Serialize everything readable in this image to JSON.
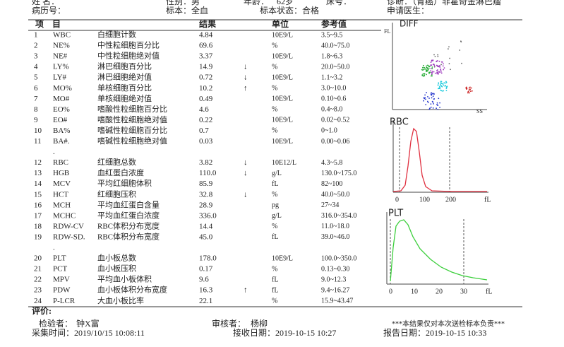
{
  "header": {
    "line1": [
      "姓",
      "名：",
      "性别：男",
      "年龄：",
      "62岁",
      "床号：",
      "诊断：（胃癌）非霍奇金淋巴瘤"
    ],
    "line2": [
      "病历号：",
      "标本：全血",
      "标本状态：合格",
      "申请医生："
    ]
  },
  "table": {
    "columns": [
      "项　目",
      "结果",
      "单位",
      "参考值"
    ],
    "rows": [
      {
        "num": "1",
        "code": "WBC",
        "name": "白细胞计数",
        "result": "4.84",
        "unit": "10E9/L",
        "ref": "3.5~9.5"
      },
      {
        "num": "2",
        "code": "NE%",
        "name": "中性粒细胞百分比",
        "result": "69.6",
        "unit": "%",
        "ref": "40.0~75.0"
      },
      {
        "num": "3",
        "code": "NE#",
        "name": "中性粒细胞绝对值",
        "result": "3.37",
        "unit": "10E9/L",
        "ref": "1.8~6.3"
      },
      {
        "num": "4",
        "code": "LY%",
        "name": "淋巴细胞百分比",
        "result": "14.9",
        "flag": "↓",
        "unit": "%",
        "ref": "20.0~50.0"
      },
      {
        "num": "5",
        "code": "LY#",
        "name": "淋巴细胞绝对值",
        "result": "0.72",
        "flag": "↓",
        "unit": "10E9/L",
        "ref": "1.1~3.2"
      },
      {
        "num": "6",
        "code": "MO%",
        "name": "单核细胞百分比",
        "result": "10.2",
        "flag": "↑",
        "unit": "%",
        "ref": "3.0~10.0"
      },
      {
        "num": "7",
        "code": "MO#",
        "name": "单核细胞绝对值",
        "result": "0.49",
        "unit": "10E9/L",
        "ref": "0.10~0.6"
      },
      {
        "num": "8",
        "code": "EO%",
        "name": "嗜酸性粒细胞百分比",
        "result": "4.6",
        "unit": "%",
        "ref": "0.4~8.0"
      },
      {
        "num": "9",
        "code": "EO#",
        "name": "嗜酸性粒细胞绝对值",
        "result": "0.22",
        "unit": "10E9/L",
        "ref": "0.02~0.52"
      },
      {
        "num": "10",
        "code": "BA%",
        "name": "嗜碱性粒细胞百分比",
        "result": "0.7",
        "unit": "%",
        "ref": "0~1.0"
      },
      {
        "num": "11",
        "code": "BA#.",
        "name": "嗜碱性粒细胞绝对值",
        "result": "0.03",
        "unit": "10E9/L",
        "ref": "0.00~0.06"
      },
      {
        "num": "."
      },
      {
        "num": "12",
        "code": "RBC",
        "name": "红细胞总数",
        "result": "3.82",
        "flag": "↓",
        "unit": "10E12/L",
        "ref": "4.3~5.8"
      },
      {
        "num": "13",
        "code": "HGB",
        "name": "血红蛋白浓度",
        "result": "110.0",
        "flag": "↓",
        "unit": "g/L",
        "ref": "130.0~175.0"
      },
      {
        "num": "14",
        "code": "MCV",
        "name": "平均红细胞体积",
        "result": "85.9",
        "unit": "fL",
        "ref": "82~100"
      },
      {
        "num": "15",
        "code": "HCT",
        "name": "红细胞压积",
        "result": "32.8",
        "flag": "↓",
        "unit": "%",
        "ref": "40.0~50.0"
      },
      {
        "num": "16",
        "code": "MCH",
        "name": "平均血红蛋白含量",
        "result": "28.9",
        "unit": "pg",
        "ref": "27~34"
      },
      {
        "num": "17",
        "code": "MCHC",
        "name": "平均血红蛋白浓度",
        "result": "336.0",
        "unit": "g/L",
        "ref": "316.0~354.0"
      },
      {
        "num": "18",
        "code": "RDW-CV",
        "name": "RBC体积分布宽度",
        "result": "14.4",
        "unit": "%",
        "ref": "11.0~18.0"
      },
      {
        "num": "19",
        "code": "RDW-SD.",
        "name": "RBC体积分布宽度",
        "result": "45.0",
        "unit": "fL",
        "ref": "39.0~46.0"
      },
      {
        "num": "."
      },
      {
        "num": "20",
        "code": "PLT",
        "name": "血小板总数",
        "result": "178.0",
        "unit": "10E9/L",
        "ref": "100.0~350.0"
      },
      {
        "num": "21",
        "code": "PCT",
        "name": "血小板压积",
        "result": "0.17",
        "unit": "%",
        "ref": "0.13~0.30"
      },
      {
        "num": "22",
        "code": "MPV",
        "name": "平均血小板体积",
        "result": "9.6",
        "unit": "fL",
        "ref": "9.0~12.3"
      },
      {
        "num": "23",
        "code": "PDW",
        "name": "血小板体积分布宽度",
        "result": "16.3",
        "flag": "↑",
        "unit": "fL",
        "ref": "9.4~16.27"
      },
      {
        "num": "24",
        "code": "P-LCR",
        "name": "大血小板比率",
        "result": "22.1",
        "unit": "%",
        "ref": "15.9~43.47"
      }
    ]
  },
  "graphs": {
    "diff": {
      "title": "DIFF",
      "y_label": "FL",
      "x_label": "SS"
    },
    "rbc": {
      "title": "RBC",
      "ticks": [
        "0",
        "100",
        "200",
        "fL"
      ]
    },
    "plt": {
      "title": "PLT",
      "ticks": [
        "0",
        "10",
        "20",
        "30",
        "fL"
      ]
    }
  },
  "footer": {
    "evaluation": "评价:",
    "tester_label": "检验者：",
    "tester": "钟X富",
    "reviewer_label": "审核者：",
    "reviewer": "杨柳",
    "note": "***本结果仅对本次送检标本负责***",
    "collect": "采集时间：2019/10/15 10:08:11",
    "receive": "接收日期：2019-10-15 10:27",
    "report": "报告日期：2019-10-15 10:33"
  }
}
